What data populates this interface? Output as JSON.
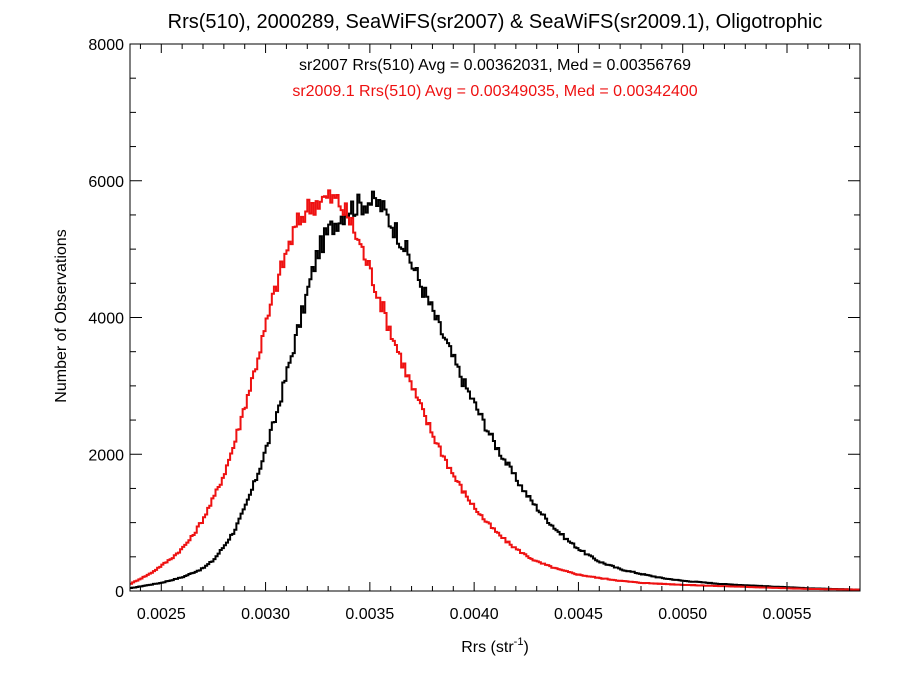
{
  "chart_data": {
    "type": "histogram",
    "title": "Rrs(510), 2000289, SeaWiFS(sr2007) & SeaWiFS(sr2009.1), Oligotrophic",
    "xlabel": {
      "text": "Rrs (str",
      "sup": "-1",
      "suffix": ")"
    },
    "ylabel": "Number of Observations",
    "xlim": [
      0.00235,
      0.00585
    ],
    "ylim": [
      0,
      8000
    ],
    "x_ticks": [
      {
        "value": 0.0025,
        "label": "0.0025"
      },
      {
        "value": 0.003,
        "label": "0.0030"
      },
      {
        "value": 0.0035,
        "label": "0.0035"
      },
      {
        "value": 0.004,
        "label": "0.0040"
      },
      {
        "value": 0.0045,
        "label": "0.0045"
      },
      {
        "value": 0.005,
        "label": "0.0050"
      },
      {
        "value": 0.0055,
        "label": "0.0055"
      }
    ],
    "y_ticks": [
      {
        "value": 0,
        "label": "0"
      },
      {
        "value": 2000,
        "label": "2000"
      },
      {
        "value": 4000,
        "label": "4000"
      },
      {
        "value": 6000,
        "label": "6000"
      },
      {
        "value": 8000,
        "label": "8000"
      }
    ],
    "annotations": [
      {
        "text": "sr2007 Rrs(510) Avg = 0.00362031, Med = 0.00356769",
        "color": "#000000"
      },
      {
        "text": "sr2009.1 Rrs(510) Avg = 0.00349035, Med = 0.00342400",
        "color": "#ee1111"
      }
    ],
    "series": [
      {
        "color": "#000000",
        "points": [
          [
            0.00235,
            40
          ],
          [
            0.0025,
            120
          ],
          [
            0.0026,
            200
          ],
          [
            0.0027,
            330
          ],
          [
            0.00275,
            450
          ],
          [
            0.0028,
            650
          ],
          [
            0.00285,
            880
          ],
          [
            0.0029,
            1200
          ],
          [
            0.00295,
            1600
          ],
          [
            0.003,
            2050
          ],
          [
            0.00305,
            2550
          ],
          [
            0.0031,
            3150
          ],
          [
            0.00315,
            3750
          ],
          [
            0.0032,
            4350
          ],
          [
            0.00325,
            4950
          ],
          [
            0.0033,
            5250
          ],
          [
            0.00335,
            5450
          ],
          [
            0.0034,
            5600
          ],
          [
            0.00345,
            5650
          ],
          [
            0.0035,
            5700
          ],
          [
            0.00355,
            5650
          ],
          [
            0.0036,
            5400
          ],
          [
            0.00365,
            5150
          ],
          [
            0.0037,
            4800
          ],
          [
            0.00375,
            4450
          ],
          [
            0.0038,
            4100
          ],
          [
            0.00385,
            3750
          ],
          [
            0.0039,
            3400
          ],
          [
            0.00395,
            3050
          ],
          [
            0.004,
            2750
          ],
          [
            0.00405,
            2450
          ],
          [
            0.0041,
            2150
          ],
          [
            0.00415,
            1900
          ],
          [
            0.0042,
            1650
          ],
          [
            0.00425,
            1420
          ],
          [
            0.0043,
            1220
          ],
          [
            0.00435,
            1040
          ],
          [
            0.0044,
            880
          ],
          [
            0.00445,
            740
          ],
          [
            0.0045,
            620
          ],
          [
            0.00455,
            520
          ],
          [
            0.0046,
            430
          ],
          [
            0.0047,
            320
          ],
          [
            0.0048,
            250
          ],
          [
            0.0049,
            190
          ],
          [
            0.005,
            150
          ],
          [
            0.0052,
            100
          ],
          [
            0.0054,
            70
          ],
          [
            0.0056,
            40
          ],
          [
            0.00585,
            20
          ]
        ]
      },
      {
        "color": "#ee1111",
        "points": [
          [
            0.00235,
            100
          ],
          [
            0.00245,
            260
          ],
          [
            0.00255,
            480
          ],
          [
            0.0026,
            620
          ],
          [
            0.00265,
            800
          ],
          [
            0.0027,
            1050
          ],
          [
            0.00275,
            1350
          ],
          [
            0.0028,
            1700
          ],
          [
            0.00285,
            2150
          ],
          [
            0.0029,
            2700
          ],
          [
            0.00295,
            3250
          ],
          [
            0.003,
            3850
          ],
          [
            0.00305,
            4450
          ],
          [
            0.0031,
            4950
          ],
          [
            0.00315,
            5350
          ],
          [
            0.0032,
            5600
          ],
          [
            0.00325,
            5700
          ],
          [
            0.0033,
            5750
          ],
          [
            0.00335,
            5700
          ],
          [
            0.0034,
            5450
          ],
          [
            0.00345,
            5100
          ],
          [
            0.0035,
            4700
          ],
          [
            0.00355,
            4250
          ],
          [
            0.0036,
            3800
          ],
          [
            0.00365,
            3400
          ],
          [
            0.0037,
            3000
          ],
          [
            0.00375,
            2650
          ],
          [
            0.0038,
            2300
          ],
          [
            0.00385,
            2000
          ],
          [
            0.0039,
            1700
          ],
          [
            0.00395,
            1450
          ],
          [
            0.004,
            1230
          ],
          [
            0.00405,
            1040
          ],
          [
            0.0041,
            880
          ],
          [
            0.00415,
            740
          ],
          [
            0.0042,
            620
          ],
          [
            0.00425,
            520
          ],
          [
            0.0043,
            430
          ],
          [
            0.0044,
            320
          ],
          [
            0.0045,
            240
          ],
          [
            0.0046,
            190
          ],
          [
            0.0047,
            150
          ],
          [
            0.0048,
            120
          ],
          [
            0.005,
            90
          ],
          [
            0.0052,
            70
          ],
          [
            0.0054,
            50
          ],
          [
            0.0056,
            30
          ],
          [
            0.00585,
            20
          ]
        ]
      }
    ]
  }
}
